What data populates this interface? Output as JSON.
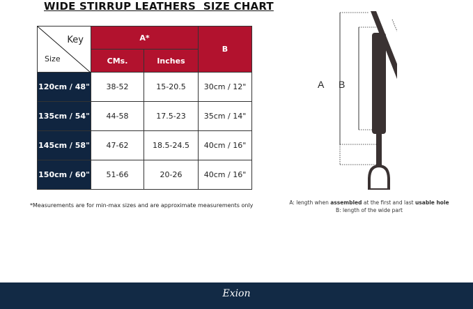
{
  "title": "WIDE STIRRUP LEATHERS  SIZE CHART",
  "table": {
    "corner_key": "Key",
    "corner_size": "Size",
    "header_a": "A*",
    "header_b": "B",
    "sub_cms": "CMs.",
    "sub_inches": "Inches",
    "rows": [
      {
        "size": "120cm / 48\"",
        "cms": "38-52",
        "inches": "15-20.5",
        "b": "30cm / 12\""
      },
      {
        "size": "135cm / 54\"",
        "cms": "44-58",
        "inches": "17.5-23",
        "b": "35cm / 14\""
      },
      {
        "size": "145cm / 58\"",
        "cms": "47-62",
        "inches": "18.5-24.5",
        "b": "40cm / 16\""
      },
      {
        "size": "150cm / 60\"",
        "cms": "51-66",
        "inches": "20-26",
        "b": "40cm / 16\""
      }
    ]
  },
  "note": "*Measurements are for min-max sizes and are approximate measurements only",
  "diagram": {
    "label_a": "A",
    "label_b": "B"
  },
  "caption": {
    "a_prefix": "A: length when ",
    "a_bold1": "assembled",
    "a_mid": " at the first and last ",
    "a_bold2": "usable hole",
    "b": "B: length of the wide part"
  },
  "footer": {
    "brand": "Exion"
  },
  "colors": {
    "red": "#b2122e",
    "navy": "#102540",
    "footer": "#122a45"
  }
}
